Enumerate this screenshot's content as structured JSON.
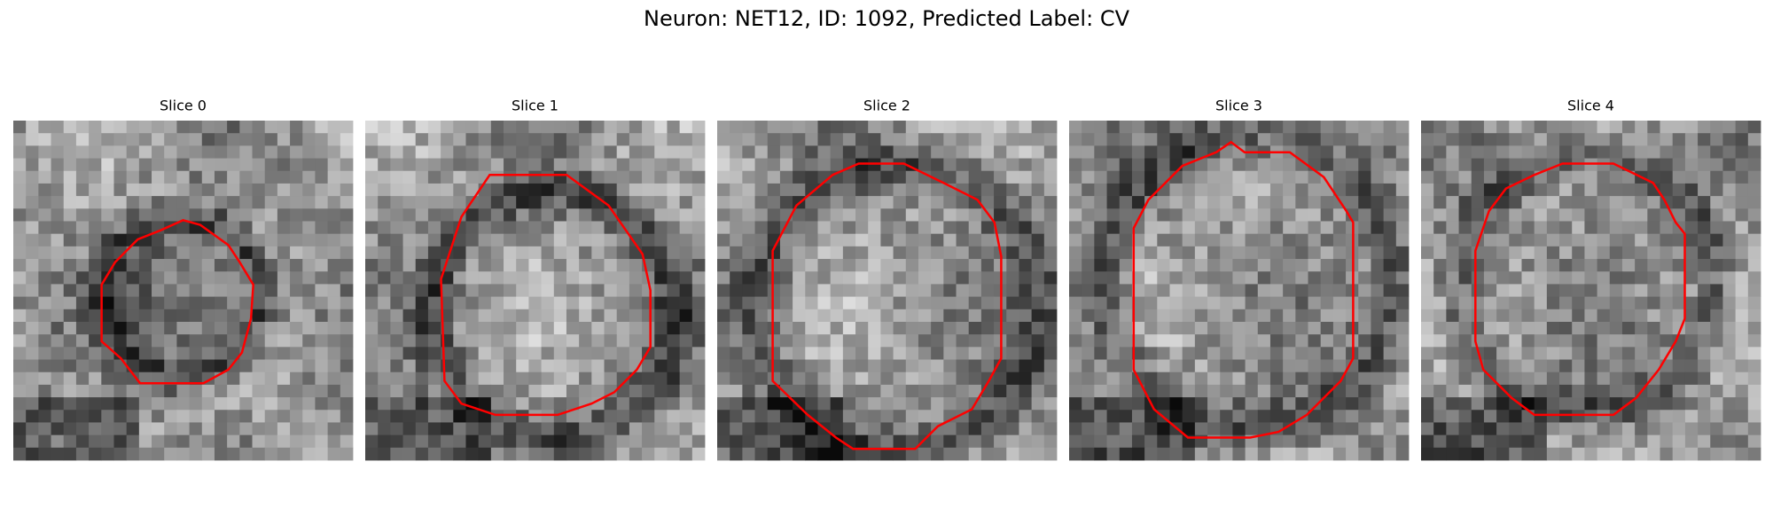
{
  "title": "Neuron: NET12, ID: 1092, Predicted Label: CV",
  "panels": [
    {
      "title": "Slice 0"
    },
    {
      "title": "Slice 1"
    },
    {
      "title": "Slice 2"
    },
    {
      "title": "Slice 3"
    },
    {
      "title": "Slice 4"
    }
  ]
}
